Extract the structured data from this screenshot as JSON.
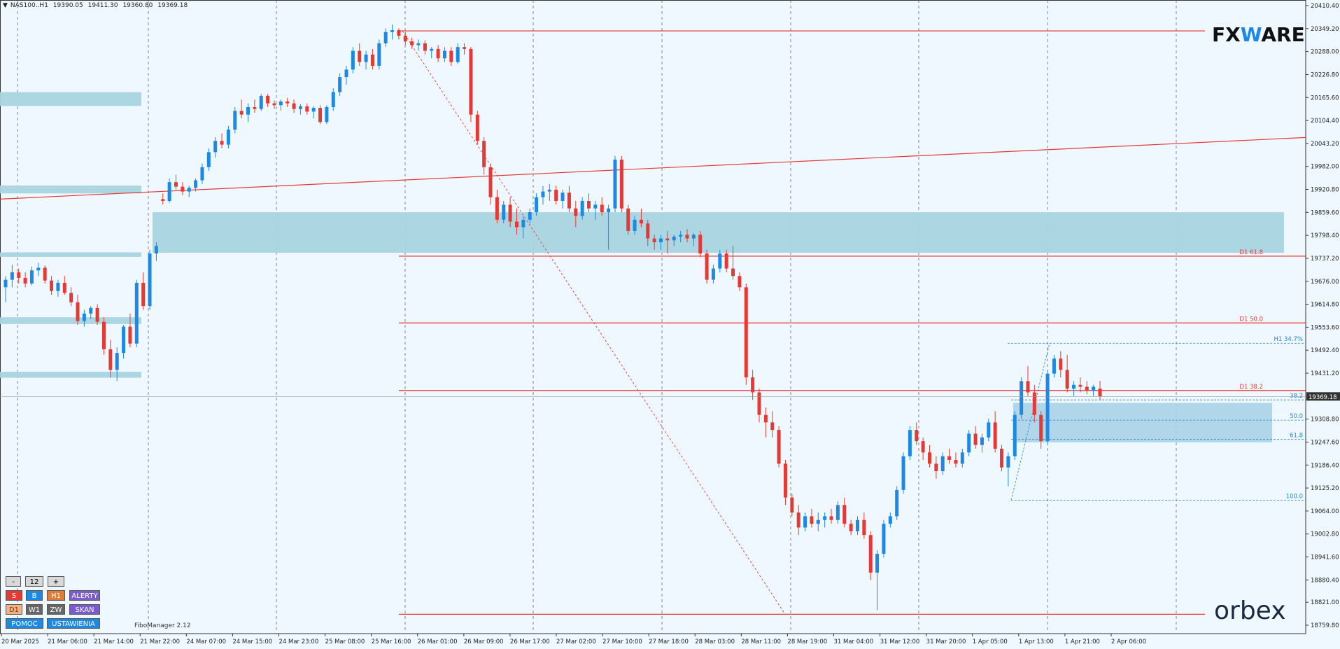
{
  "header": {
    "symbol": "NAS100..H1",
    "open": "19390.05",
    "high": "19411.30",
    "low": "19360.80",
    "close": "19369.18"
  },
  "brands": {
    "fxware_prefix": "FX",
    "fxware_w": "W",
    "fxware_suffix": "ARE",
    "orbex": "orbex"
  },
  "indicator_label": "FiboManager 2.12",
  "panel": {
    "minus": "-",
    "value": "12",
    "plus": "+",
    "row1": [
      "S",
      "B",
      "H1",
      "ALERTY"
    ],
    "row2": [
      "D1",
      "W1",
      "ZW",
      "SKAN"
    ],
    "row3": [
      "POMOC",
      "USTAWIENIA"
    ]
  },
  "colors": {
    "background": "#f0f8ff",
    "bull": "#1e88e5",
    "bear": "#e53935",
    "level_line": "#e53935",
    "zone": "#a9d4e2",
    "fib_blue": "#1e88e5"
  },
  "chart_data": {
    "type": "candlestick",
    "symbol": "NAS100..H1",
    "timeframe": "H1",
    "ylim": [
      18759.8,
      20410.4
    ],
    "yticks": [
      "20410.40",
      "20349.20",
      "20288.00",
      "20226.80",
      "20165.60",
      "20104.40",
      "20043.20",
      "19982.00",
      "19920.80",
      "19859.60",
      "19798.40",
      "19737.20",
      "19676.00",
      "19614.80",
      "19553.60",
      "19492.40",
      "19431.20",
      "19370.00",
      "19308.80",
      "19247.60",
      "19186.40",
      "19125.20",
      "19064.00",
      "19002.80",
      "18941.60",
      "18880.40",
      "18821.00",
      "18759.80"
    ],
    "xticks": [
      "20 Mar 2025",
      "21 Mar 06:00",
      "21 Mar 14:00",
      "21 Mar 22:00",
      "24 Mar 07:00",
      "24 Mar 15:00",
      "24 Mar 23:00",
      "25 Mar 08:00",
      "25 Mar 16:00",
      "26 Mar 01:00",
      "26 Mar 09:00",
      "26 Mar 17:00",
      "27 Mar 02:00",
      "27 Mar 10:00",
      "27 Mar 18:00",
      "28 Mar 03:00",
      "28 Mar 11:00",
      "28 Mar 19:00",
      "31 Mar 04:00",
      "31 Mar 12:00",
      "31 Mar 20:00",
      "1 Apr 05:00",
      "1 Apr 13:00",
      "1 Apr 21:00",
      "2 Apr 06:00"
    ],
    "current_price": "19369.18",
    "horizontal_levels": [
      {
        "price": 20343,
        "label": ""
      },
      {
        "price": 19743,
        "label": "D1 61.8"
      },
      {
        "price": 19565,
        "label": "D1 50.0"
      },
      {
        "price": 19385,
        "label": "D1 38.2"
      },
      {
        "price": 18789,
        "label": ""
      }
    ],
    "trendline": {
      "from_price": 19895,
      "to_price": 20059,
      "color": "#e53935"
    },
    "fib_h1": [
      {
        "price": 19511,
        "label": "H1 34.7%"
      },
      {
        "price": 19360,
        "label": "38.2"
      },
      {
        "price": 19306,
        "label": "50.0"
      },
      {
        "price": 19255,
        "label": "61.8"
      },
      {
        "price": 19093,
        "label": "100.0"
      }
    ],
    "zones": [
      {
        "top": 20180,
        "bottom": 20143
      },
      {
        "top": 19931,
        "bottom": 19910
      },
      {
        "top": 19753,
        "bottom": 19741
      },
      {
        "top": 19580,
        "bottom": 19562
      },
      {
        "top": 19435,
        "bottom": 19419
      },
      {
        "top": 19860,
        "bottom": 19752
      },
      {
        "top": 19352,
        "bottom": 19247
      }
    ],
    "candles": [
      [
        19660,
        19690,
        19620,
        19680
      ],
      [
        19680,
        19720,
        19660,
        19700
      ],
      [
        19700,
        19710,
        19670,
        19685
      ],
      [
        19685,
        19700,
        19660,
        19670
      ],
      [
        19670,
        19715,
        19665,
        19705
      ],
      [
        19705,
        19725,
        19690,
        19712
      ],
      [
        19712,
        19718,
        19670,
        19678
      ],
      [
        19678,
        19690,
        19640,
        19650
      ],
      [
        19650,
        19680,
        19635,
        19672
      ],
      [
        19672,
        19690,
        19640,
        19645
      ],
      [
        19645,
        19660,
        19610,
        19620
      ],
      [
        19620,
        19640,
        19560,
        19570
      ],
      [
        19570,
        19600,
        19555,
        19590
      ],
      [
        19590,
        19610,
        19575,
        19605
      ],
      [
        19605,
        19615,
        19560,
        19568
      ],
      [
        19568,
        19580,
        19480,
        19495
      ],
      [
        19495,
        19520,
        19420,
        19440
      ],
      [
        19440,
        19500,
        19410,
        19485
      ],
      [
        19485,
        19560,
        19470,
        19555
      ],
      [
        19555,
        19590,
        19500,
        19510
      ],
      [
        19510,
        19680,
        19500,
        19672
      ],
      [
        19672,
        19700,
        19600,
        19610
      ],
      [
        19610,
        19760,
        19600,
        19750
      ],
      [
        19750,
        19780,
        19730,
        19770
      ],
      [
        19895,
        19910,
        19880,
        19890
      ],
      [
        19890,
        19950,
        19885,
        19940
      ],
      [
        19940,
        19960,
        19920,
        19928
      ],
      [
        19928,
        19940,
        19905,
        19915
      ],
      [
        19915,
        19930,
        19900,
        19925
      ],
      [
        19925,
        19950,
        19915,
        19945
      ],
      [
        19945,
        19990,
        19935,
        19980
      ],
      [
        19980,
        20030,
        19970,
        20020
      ],
      [
        20020,
        20060,
        20005,
        20050
      ],
      [
        20050,
        20070,
        20030,
        20040
      ],
      [
        20040,
        20090,
        20030,
        20080
      ],
      [
        20080,
        20140,
        20070,
        20130
      ],
      [
        20130,
        20160,
        20110,
        20120
      ],
      [
        20120,
        20150,
        20100,
        20140
      ],
      [
        20140,
        20160,
        20125,
        20135
      ],
      [
        20135,
        20175,
        20130,
        20170
      ],
      [
        20170,
        20175,
        20140,
        20150
      ],
      [
        20150,
        20158,
        20135,
        20145
      ],
      [
        20145,
        20160,
        20130,
        20155
      ],
      [
        20155,
        20165,
        20140,
        20150
      ],
      [
        20150,
        20160,
        20125,
        20135
      ],
      [
        20135,
        20148,
        20120,
        20142
      ],
      [
        20142,
        20150,
        20120,
        20128
      ],
      [
        20128,
        20142,
        20110,
        20138
      ],
      [
        20138,
        20145,
        20095,
        20100
      ],
      [
        20100,
        20145,
        20095,
        20140
      ],
      [
        20140,
        20190,
        20130,
        20180
      ],
      [
        20180,
        20230,
        20170,
        20220
      ],
      [
        20220,
        20250,
        20200,
        20240
      ],
      [
        20240,
        20300,
        20230,
        20290
      ],
      [
        20290,
        20310,
        20250,
        20260
      ],
      [
        20260,
        20290,
        20240,
        20280
      ],
      [
        20280,
        20295,
        20240,
        20250
      ],
      [
        20250,
        20320,
        20240,
        20310
      ],
      [
        20310,
        20350,
        20300,
        20340
      ],
      [
        20340,
        20360,
        20320,
        20345
      ],
      [
        20345,
        20350,
        20320,
        20330
      ],
      [
        20330,
        20340,
        20305,
        20315
      ],
      [
        20315,
        20325,
        20295,
        20305
      ],
      [
        20305,
        20320,
        20290,
        20310
      ],
      [
        20310,
        20318,
        20280,
        20290
      ],
      [
        20290,
        20300,
        20270,
        20295
      ],
      [
        20295,
        20305,
        20260,
        20270
      ],
      [
        20270,
        20300,
        20260,
        20290
      ],
      [
        20290,
        20300,
        20250,
        20260
      ],
      [
        20260,
        20310,
        20255,
        20300
      ],
      [
        20300,
        20310,
        20280,
        20295
      ],
      [
        20295,
        20300,
        20100,
        20120
      ],
      [
        20120,
        20130,
        20040,
        20050
      ],
      [
        20050,
        20060,
        19960,
        19980
      ],
      [
        19980,
        19990,
        19880,
        19900
      ],
      [
        19900,
        19920,
        19830,
        19840
      ],
      [
        19840,
        19890,
        19830,
        19880
      ],
      [
        19880,
        19900,
        19820,
        19835
      ],
      [
        19835,
        19870,
        19800,
        19820
      ],
      [
        19820,
        19850,
        19790,
        19840
      ],
      [
        19840,
        19870,
        19830,
        19860
      ],
      [
        19860,
        19910,
        19850,
        19900
      ],
      [
        19900,
        19930,
        19880,
        19915
      ],
      [
        19915,
        19935,
        19890,
        19920
      ],
      [
        19920,
        19930,
        19880,
        19890
      ],
      [
        19890,
        19920,
        19870,
        19912
      ],
      [
        19912,
        19930,
        19860,
        19870
      ],
      [
        19870,
        19890,
        19820,
        19850
      ],
      [
        19850,
        19900,
        19840,
        19890
      ],
      [
        19890,
        19910,
        19860,
        19870
      ],
      [
        19870,
        19890,
        19840,
        19880
      ],
      [
        19880,
        19900,
        19850,
        19860
      ],
      [
        19860,
        19880,
        19760,
        19870
      ],
      [
        19870,
        20010,
        19860,
        20000
      ],
      [
        20000,
        20010,
        19860,
        19870
      ],
      [
        19870,
        19880,
        19800,
        19810
      ],
      [
        19810,
        19850,
        19800,
        19840
      ],
      [
        19840,
        19870,
        19820,
        19830
      ],
      [
        19830,
        19840,
        19770,
        19790
      ],
      [
        19790,
        19800,
        19760,
        19780
      ],
      [
        19780,
        19800,
        19760,
        19790
      ],
      [
        19790,
        19810,
        19750,
        19785
      ],
      [
        19785,
        19800,
        19770,
        19795
      ],
      [
        19795,
        19810,
        19780,
        19800
      ],
      [
        19800,
        19815,
        19780,
        19790
      ],
      [
        19790,
        19805,
        19770,
        19800
      ],
      [
        19800,
        19810,
        19740,
        19750
      ],
      [
        19750,
        19760,
        19670,
        19680
      ],
      [
        19680,
        19720,
        19670,
        19710
      ],
      [
        19710,
        19760,
        19700,
        19750
      ],
      [
        19750,
        19760,
        19700,
        19710
      ],
      [
        19710,
        19770,
        19680,
        19690
      ],
      [
        19690,
        19700,
        19650,
        19660
      ],
      [
        19660,
        19670,
        19400,
        19420
      ],
      [
        19420,
        19440,
        19360,
        19380
      ],
      [
        19380,
        19390,
        19300,
        19320
      ],
      [
        19320,
        19340,
        19260,
        19300
      ],
      [
        19300,
        19330,
        19260,
        19280
      ],
      [
        19280,
        19290,
        19180,
        19190
      ],
      [
        19190,
        19200,
        19080,
        19100
      ],
      [
        19100,
        19110,
        19050,
        19060
      ],
      [
        19060,
        19080,
        19000,
        19020
      ],
      [
        19020,
        19060,
        19010,
        19050
      ],
      [
        19050,
        19070,
        19020,
        19030
      ],
      [
        19030,
        19060,
        19010,
        19040
      ],
      [
        19040,
        19060,
        19020,
        19050
      ],
      [
        19050,
        19070,
        19030,
        19040
      ],
      [
        19040,
        19090,
        19030,
        19080
      ],
      [
        19080,
        19100,
        19020,
        19030
      ],
      [
        19030,
        19040,
        19000,
        19010
      ],
      [
        19010,
        19050,
        19000,
        19040
      ],
      [
        19040,
        19060,
        18990,
        19000
      ],
      [
        19000,
        19010,
        18880,
        18900
      ],
      [
        18900,
        18960,
        18800,
        18950
      ],
      [
        18950,
        19040,
        18940,
        19030
      ],
      [
        19030,
        19060,
        19020,
        19050
      ],
      [
        19050,
        19130,
        19040,
        19120
      ],
      [
        19120,
        19220,
        19110,
        19210
      ],
      [
        19210,
        19290,
        19200,
        19280
      ],
      [
        19280,
        19300,
        19240,
        19250
      ],
      [
        19250,
        19260,
        19200,
        19220
      ],
      [
        19220,
        19240,
        19180,
        19190
      ],
      [
        19190,
        19210,
        19150,
        19170
      ],
      [
        19170,
        19220,
        19160,
        19210
      ],
      [
        19210,
        19230,
        19190,
        19200
      ],
      [
        19200,
        19220,
        19180,
        19190
      ],
      [
        19190,
        19230,
        19180,
        19220
      ],
      [
        19220,
        19280,
        19210,
        19270
      ],
      [
        19270,
        19290,
        19230,
        19240
      ],
      [
        19240,
        19270,
        19220,
        19260
      ],
      [
        19260,
        19310,
        19250,
        19300
      ],
      [
        19300,
        19330,
        19220,
        19230
      ],
      [
        19230,
        19240,
        19170,
        19180
      ],
      [
        19180,
        19220,
        19130,
        19210
      ],
      [
        19210,
        19330,
        19200,
        19320
      ],
      [
        19320,
        19420,
        19310,
        19410
      ],
      [
        19410,
        19450,
        19370,
        19380
      ],
      [
        19380,
        19400,
        19300,
        19320
      ],
      [
        19320,
        19330,
        19230,
        19250
      ],
      [
        19250,
        19440,
        19240,
        19430
      ],
      [
        19430,
        19480,
        19420,
        19470
      ],
      [
        19470,
        19490,
        19420,
        19440
      ],
      [
        19440,
        19480,
        19380,
        19390
      ],
      [
        19390,
        19410,
        19370,
        19400
      ],
      [
        19400,
        19420,
        19380,
        19395
      ],
      [
        19395,
        19410,
        19375,
        19385
      ],
      [
        19385,
        19400,
        19370,
        19395
      ],
      [
        19390,
        19411,
        19360,
        19369
      ]
    ]
  }
}
